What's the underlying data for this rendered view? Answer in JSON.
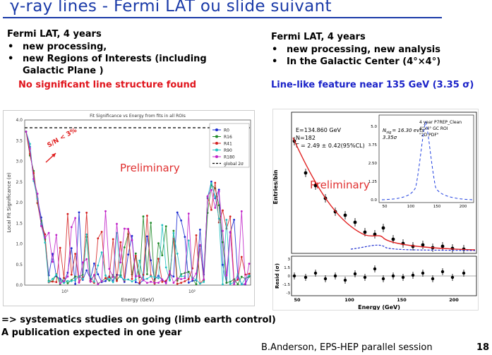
{
  "title": "γ-ray lines  -  Fermi LAT ou slide suivant",
  "left": {
    "head": "Fermi LAT, 4 years",
    "bullets": [
      "new processing,",
      "new  Regions of Interests (including Galactic Plane )"
    ],
    "result": "No significant line structure found"
  },
  "right": {
    "head": "Fermi LAT, 4 years",
    "bullets": [
      "new processing, new analysis",
      "In the Galactic Center (4°×4°)"
    ],
    "result": "Line-like feature near 135 GeV (3.35 σ)"
  },
  "left_plot": {
    "title": "Fit Significance vs Energy from fits in all ROIs",
    "ylabel": "Local Fit Significance (σ)",
    "xlabel": "Energy (GeV)",
    "watermark": "Preliminary",
    "annotation": "S/N < 3%",
    "yticks": [
      "0.0",
      "0.5",
      "1.0",
      "1.5",
      "2.0",
      "2.5",
      "3.0",
      "3.5",
      "4.0"
    ],
    "xticks": [
      "10¹",
      "10²"
    ],
    "legend": [
      {
        "label": "R0",
        "color": "#1a2ad0"
      },
      {
        "label": "R16",
        "color": "#1e8a28"
      },
      {
        "label": "R41",
        "color": "#d42020"
      },
      {
        "label": "R90",
        "color": "#20c0c0"
      },
      {
        "label": "R180",
        "color": "#c020c8"
      },
      {
        "label": "global 2σ",
        "color": "#000000"
      }
    ]
  },
  "right_plot": {
    "info": [
      "E=134.860 GeV",
      "N=182",
      "Γ = 2.49 ± 0.42(95%CL)"
    ],
    "watermark": "Preliminary",
    "ylabel": "Entries/bin",
    "resid_label": "Resid (σ)",
    "xlabel": "Energy (GeV)",
    "xticks": [
      "50",
      "100",
      "150",
      "200"
    ],
    "resid_yticks": [
      "3",
      "1.5",
      "0",
      "-1.5",
      "-3"
    ],
    "inset": {
      "lines": [
        "4 year P7REP_Clean",
        "4°x4° GC ROI",
        "\"2D PDF\""
      ],
      "nsig": "N",
      "nsig_sub": "sig",
      "nsig_val": "= 16.30 evts",
      "sigma": "3.35σ",
      "yticks": [
        "5.0",
        "3.75",
        "2.50",
        "1.25",
        "0.0"
      ],
      "xticks": [
        "50",
        "100",
        "150",
        "200"
      ]
    }
  },
  "bottom": [
    "=> systematics studies on going (limb earth control)",
    "A publication expected in one year"
  ],
  "footer": "B.Anderson, EPS-HEP parallel session",
  "page_number": "18"
}
